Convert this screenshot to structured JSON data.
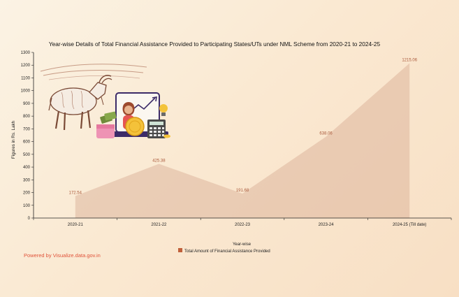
{
  "credit": "Powered by Visualize.data.gov.in",
  "chart_data": {
    "type": "area",
    "title": "Year-wise Details of Total Financial Assistance Provided to Participating States/UTs under NML Scheme from 2020-21 to 2024-25",
    "xlabel": "Year-wise",
    "ylabel": "Figures in Rs. Lakh",
    "ylim": [
      0,
      1300
    ],
    "yticks": [
      0,
      100,
      200,
      300,
      400,
      500,
      600,
      700,
      800,
      900,
      1000,
      1100,
      1200,
      1300
    ],
    "categories": [
      "2020-21",
      "2021-22",
      "2022-23",
      "2023-24",
      "2024-25 (Till date)"
    ],
    "series": [
      {
        "name": "Total Amount of Financial Assistance Provided",
        "values": [
          172.54,
          425.38,
          191.68,
          638.06,
          1215.06
        ],
        "labels": [
          "172.54",
          "425.38",
          "191.68",
          "638.06",
          "1215.06"
        ],
        "color": "#c0603a"
      }
    ],
    "legend": "bottom",
    "grid": false
  }
}
